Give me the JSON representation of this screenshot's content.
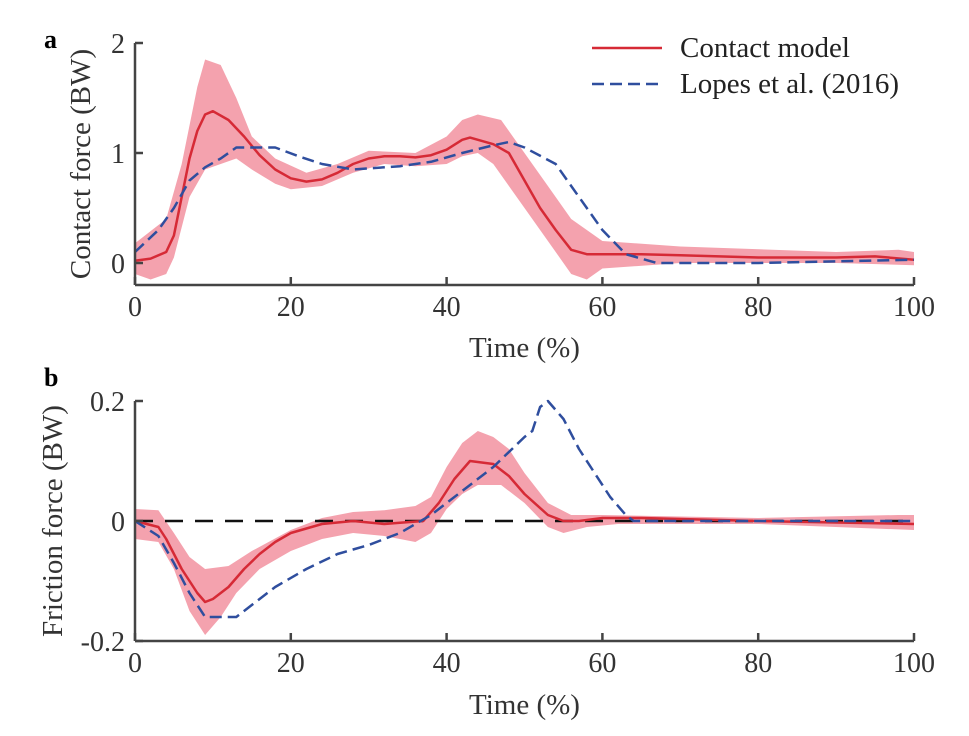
{
  "colors": {
    "model": "#d62a36",
    "band": "#f4a2ae",
    "lopes": "#2f4e9e",
    "zero": "#111111",
    "axis": "#444444"
  },
  "legend": {
    "placement": "top-right",
    "entries": [
      "Contact model",
      "Lopes et al. (2016)"
    ]
  },
  "chart_data": [
    {
      "type": "line",
      "panel_label": "a",
      "xlabel": "Time (%)",
      "ylabel": "Contact force (BW)",
      "xlim": [
        0,
        100
      ],
      "ylim": [
        -0.2,
        2
      ],
      "xticks": [
        0,
        20,
        40,
        60,
        80,
        100
      ],
      "yticks": [
        0,
        1,
        2
      ],
      "series": [
        {
          "name": "Contact model",
          "style": "solid",
          "x": [
            0,
            2,
            4,
            5,
            6,
            7,
            8,
            9,
            10,
            12,
            14,
            16,
            18,
            20,
            22,
            24,
            26,
            28,
            30,
            32,
            34,
            36,
            38,
            40,
            42,
            43,
            46,
            48,
            50,
            52,
            54,
            56,
            58,
            60,
            65,
            70,
            80,
            90,
            95,
            100
          ],
          "y": [
            0.02,
            0.04,
            0.1,
            0.25,
            0.6,
            0.95,
            1.2,
            1.35,
            1.38,
            1.3,
            1.15,
            0.98,
            0.85,
            0.77,
            0.74,
            0.76,
            0.82,
            0.9,
            0.95,
            0.97,
            0.97,
            0.96,
            0.98,
            1.03,
            1.12,
            1.14,
            1.08,
            1.0,
            0.75,
            0.5,
            0.3,
            0.12,
            0.08,
            0.08,
            0.08,
            0.07,
            0.05,
            0.05,
            0.06,
            0.03
          ]
        },
        {
          "name": "Lopes et al. (2016)",
          "style": "dashed",
          "x": [
            0,
            3,
            5,
            7,
            9,
            11,
            13,
            16,
            18,
            21,
            24,
            28,
            34,
            38,
            42,
            46,
            48,
            50,
            54,
            56,
            58,
            60,
            63,
            67,
            80,
            100
          ],
          "y": [
            0.1,
            0.3,
            0.5,
            0.75,
            0.87,
            0.95,
            1.05,
            1.05,
            1.05,
            0.97,
            0.9,
            0.85,
            0.88,
            0.92,
            1.0,
            1.07,
            1.1,
            1.05,
            0.9,
            0.7,
            0.5,
            0.3,
            0.08,
            0.0,
            0.0,
            0.03
          ]
        }
      ],
      "band": {
        "upper": {
          "x": [
            0,
            4,
            6,
            8,
            9,
            11,
            13,
            15,
            18,
            22,
            26,
            30,
            36,
            40,
            42,
            44,
            47,
            50,
            53,
            56,
            60,
            70,
            90,
            98,
            100
          ],
          "y": [
            0.18,
            0.4,
            0.9,
            1.6,
            1.85,
            1.8,
            1.5,
            1.15,
            0.95,
            0.82,
            0.9,
            1.02,
            1.0,
            1.15,
            1.3,
            1.35,
            1.3,
            1.0,
            0.7,
            0.4,
            0.2,
            0.15,
            0.1,
            0.12,
            0.1
          ]
        },
        "lower": {
          "x": [
            0,
            2,
            4,
            5,
            7,
            9,
            11,
            13,
            15,
            18,
            20,
            24,
            28,
            32,
            36,
            40,
            42,
            44,
            46,
            50,
            54,
            56,
            58,
            60,
            70,
            90,
            100
          ],
          "y": [
            -0.1,
            -0.15,
            -0.1,
            0.05,
            0.6,
            0.85,
            0.9,
            0.95,
            0.85,
            0.72,
            0.67,
            0.7,
            0.82,
            0.9,
            0.88,
            0.9,
            0.97,
            1.0,
            0.9,
            0.5,
            0.1,
            -0.1,
            -0.15,
            -0.05,
            0.0,
            0.0,
            -0.02
          ]
        }
      }
    },
    {
      "type": "line",
      "panel_label": "b",
      "xlabel": "Time (%)",
      "ylabel": "Friction force (BW)",
      "xlim": [
        0,
        100
      ],
      "ylim": [
        -0.2,
        0.2
      ],
      "xticks": [
        0,
        20,
        40,
        60,
        80,
        100
      ],
      "yticks": [
        -0.2,
        0,
        0.2
      ],
      "ytick_labels": [
        "-0.2",
        "0",
        "0.2"
      ],
      "reference_line": 0,
      "series": [
        {
          "name": "Contact model",
          "style": "solid",
          "x": [
            0,
            3,
            4,
            6,
            8,
            9,
            10,
            12,
            14,
            16,
            18,
            20,
            24,
            28,
            32,
            34,
            37,
            39,
            41,
            43,
            46,
            48,
            50,
            53,
            55,
            57,
            60,
            65,
            80,
            100
          ],
          "y": [
            0,
            -0.01,
            -0.03,
            -0.08,
            -0.12,
            -0.135,
            -0.13,
            -0.11,
            -0.08,
            -0.055,
            -0.035,
            -0.02,
            -0.005,
            0.0,
            -0.005,
            -0.003,
            0.0,
            0.03,
            0.07,
            0.1,
            0.095,
            0.075,
            0.045,
            0.01,
            0.0,
            0.0,
            0.005,
            0.005,
            0.0,
            -0.005
          ]
        },
        {
          "name": "Lopes et al. (2016)",
          "style": "dashed",
          "x": [
            0,
            3,
            5,
            7,
            9,
            13,
            15,
            18,
            22,
            26,
            30,
            34,
            38,
            42,
            46,
            50,
            51,
            52,
            53,
            55,
            57,
            59,
            61,
            63,
            64,
            80,
            100
          ],
          "y": [
            0,
            -0.025,
            -0.07,
            -0.12,
            -0.16,
            -0.16,
            -0.14,
            -0.11,
            -0.08,
            -0.055,
            -0.04,
            -0.02,
            0.01,
            0.05,
            0.09,
            0.14,
            0.15,
            0.19,
            0.2,
            0.17,
            0.12,
            0.08,
            0.04,
            0.01,
            0.0,
            0.0,
            0.0
          ]
        }
      ],
      "band": {
        "upper": {
          "x": [
            0,
            3,
            5,
            7,
            9,
            12,
            15,
            20,
            24,
            28,
            32,
            36,
            38,
            40,
            42,
            44,
            46,
            48,
            50,
            53,
            56,
            60,
            80,
            98,
            100
          ],
          "y": [
            0.02,
            0.018,
            -0.02,
            -0.06,
            -0.08,
            -0.075,
            -0.05,
            -0.015,
            0.005,
            0.015,
            0.018,
            0.025,
            0.04,
            0.09,
            0.13,
            0.15,
            0.14,
            0.12,
            0.08,
            0.03,
            0.01,
            0.01,
            0.005,
            0.01,
            0.01
          ]
        },
        "lower": {
          "x": [
            0,
            3,
            5,
            7,
            9,
            11,
            13,
            16,
            20,
            24,
            28,
            32,
            34,
            36,
            38,
            40,
            42,
            44,
            47,
            50,
            53,
            55,
            58,
            62,
            80,
            100
          ],
          "y": [
            -0.03,
            -0.035,
            -0.08,
            -0.15,
            -0.19,
            -0.16,
            -0.12,
            -0.08,
            -0.05,
            -0.03,
            -0.02,
            -0.025,
            -0.03,
            -0.035,
            -0.02,
            0.02,
            0.045,
            0.06,
            0.06,
            0.03,
            -0.01,
            -0.02,
            -0.01,
            -0.005,
            -0.005,
            -0.015
          ]
        }
      }
    }
  ]
}
